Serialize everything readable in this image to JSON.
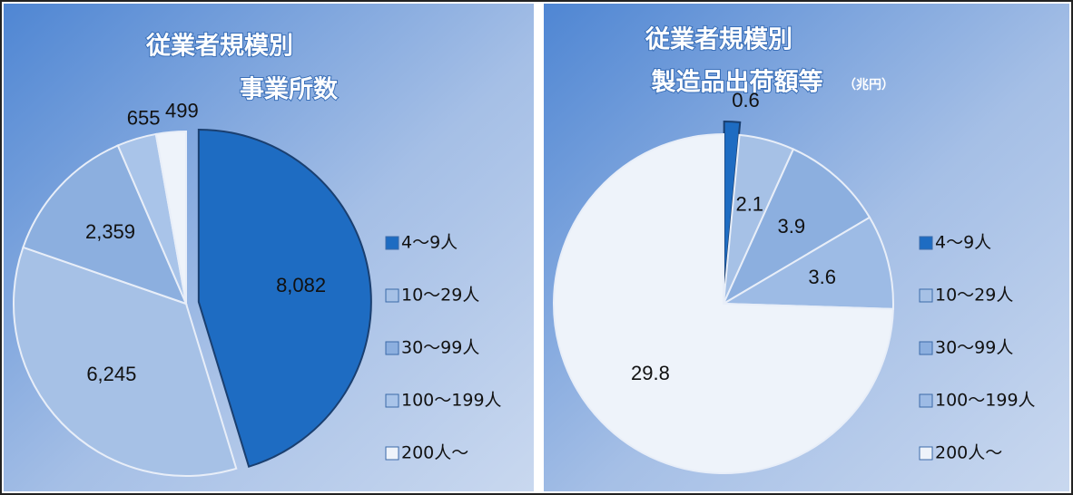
{
  "chart_data": [
    {
      "type": "pie",
      "title": [
        "従業者規模別",
        "事業所数"
      ],
      "categories": [
        "4～9人",
        "10～29人",
        "30～99人",
        "100～199人",
        "200人～"
      ],
      "values": [
        8082,
        6245,
        2359,
        655,
        499
      ],
      "value_labels": [
        "8,082",
        "6,245",
        "2,359",
        "655",
        "499"
      ],
      "colors": [
        "#1e6cc2",
        "#a6c1e6",
        "#8cafdf",
        "#a9c4e9",
        "#eef3fa"
      ],
      "legend": "right"
    },
    {
      "type": "pie",
      "title": [
        "従業者規模別",
        "製造品出荷額等"
      ],
      "title_note": "（兆円）",
      "categories": [
        "4～9人",
        "10～29人",
        "30～99人",
        "100～199人",
        "200人～"
      ],
      "values": [
        0.6,
        2.1,
        3.9,
        3.6,
        29.8
      ],
      "colors": [
        "#1e6cc2",
        "#a6c1e6",
        "#8cafdf",
        "#9dbbe5",
        "#eef3fa"
      ],
      "legend": "right"
    }
  ]
}
